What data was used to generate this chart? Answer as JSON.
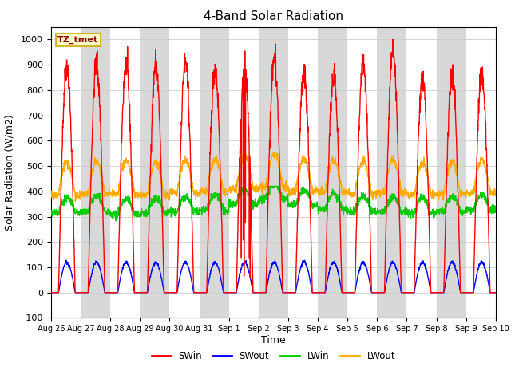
{
  "title": "4-Band Solar Radiation",
  "xlabel": "Time",
  "ylabel": "Solar Radiation (W/m2)",
  "ylim": [
    -100,
    1050
  ],
  "yticks": [
    -100,
    0,
    100,
    200,
    300,
    400,
    500,
    600,
    700,
    800,
    900,
    1000
  ],
  "label_box": "TZ_tmet",
  "legend_entries": [
    "SWin",
    "SWout",
    "LWin",
    "LWout"
  ],
  "line_colors": [
    "#ff0000",
    "#0000ff",
    "#00cc00",
    "#ffaa00"
  ],
  "background_color": "#ffffff",
  "band_color": "#d8d8d8",
  "n_days": 15,
  "title_fontsize": 11,
  "axis_fontsize": 9,
  "tick_fontsize": 8
}
